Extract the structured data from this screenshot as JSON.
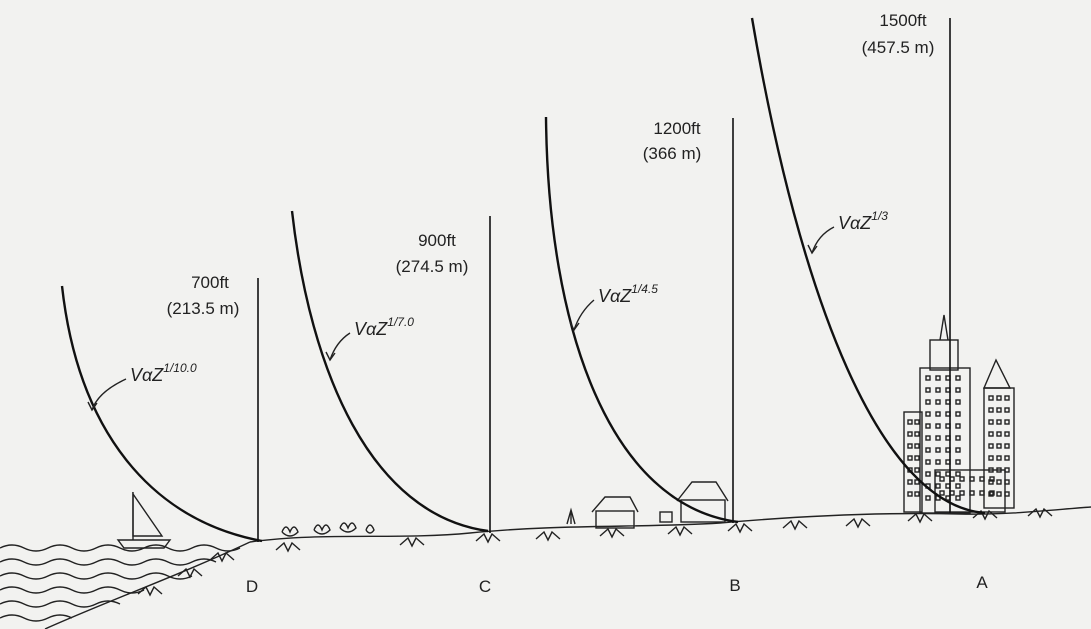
{
  "profiles": [
    {
      "id": "D",
      "height": "700ft",
      "height_m": "(213.5 m)",
      "law_prefix": "VαZ",
      "exponent": "1/10.0",
      "terrain": "water"
    },
    {
      "id": "C",
      "height": "900ft",
      "height_m": "(274.5 m)",
      "law_prefix": "VαZ",
      "exponent": "1/7.0",
      "terrain": "open-country"
    },
    {
      "id": "B",
      "height": "1200ft",
      "height_m": "(366 m)",
      "law_prefix": "VαZ",
      "exponent": "1/4.5",
      "terrain": "suburban"
    },
    {
      "id": "A",
      "height": "1500ft",
      "height_m": "(457.5 m)",
      "law_prefix": "VαZ",
      "exponent": "1/3",
      "terrain": "city"
    }
  ],
  "colors": {
    "ink": "#111111",
    "paper": "#f2f2f0"
  },
  "icons": [
    "sailboat-icon",
    "house-icon",
    "building-icon",
    "shrub-icon",
    "waves-icon"
  ]
}
